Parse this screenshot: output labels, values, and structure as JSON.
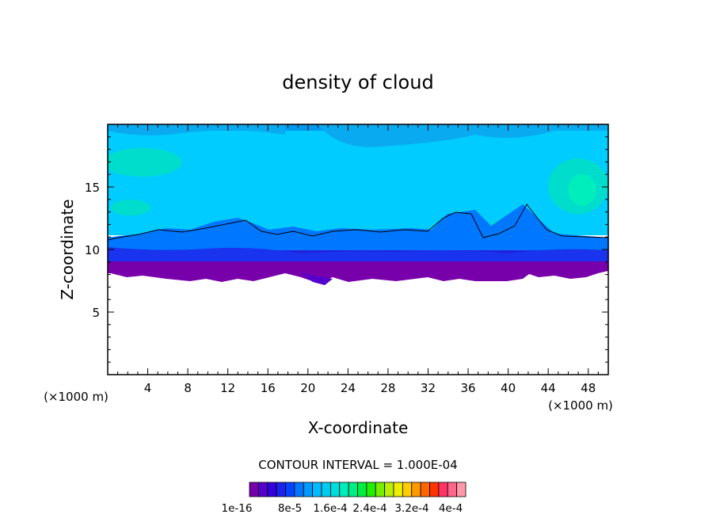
{
  "chart_data": {
    "type": "heatmap",
    "title": "density of cloud",
    "xlabel": "X-coordinate",
    "ylabel": "Z-coordinate",
    "x_unit": "(×1000 m)",
    "y_unit": "(×1000 m)",
    "xlim": [
      0,
      50
    ],
    "ylim": [
      0,
      20
    ],
    "x_ticks": [
      "4",
      "8",
      "12",
      "16",
      "20",
      "24",
      "28",
      "32",
      "36",
      "40",
      "44",
      "48"
    ],
    "y_ticks": [
      "5",
      "10",
      "15"
    ],
    "contour_interval_label": "CONTOUR INTERVAL = 1.000E-04",
    "colorbar_labels": [
      "1e-16",
      "8e-5",
      "1.6e-4",
      "2.4e-4",
      "3.2e-4",
      "4e-4"
    ],
    "colorbar_colors": [
      "#7700aa",
      "#5500cc",
      "#3300dd",
      "#1a22ee",
      "#0044ff",
      "#0077ff",
      "#0099ff",
      "#00bbff",
      "#00ccee",
      "#00dddd",
      "#00eebb",
      "#00ee88",
      "#00ee44",
      "#22ee00",
      "#77ee00",
      "#bbee00",
      "#eeee00",
      "#ffcc00",
      "#ff9900",
      "#ff6600",
      "#ff3300",
      "#ff3366",
      "#ff6688",
      "#ff99aa"
    ],
    "field_summary": {
      "cloud_base_z": 7.5,
      "cloud_top_z": 20,
      "purple_band_z": [
        7.5,
        9
      ],
      "dark_blue_band_z": [
        9,
        10.5
      ],
      "cyan_region_z": [
        10.5,
        20
      ],
      "black_contour_z": 11
    }
  }
}
